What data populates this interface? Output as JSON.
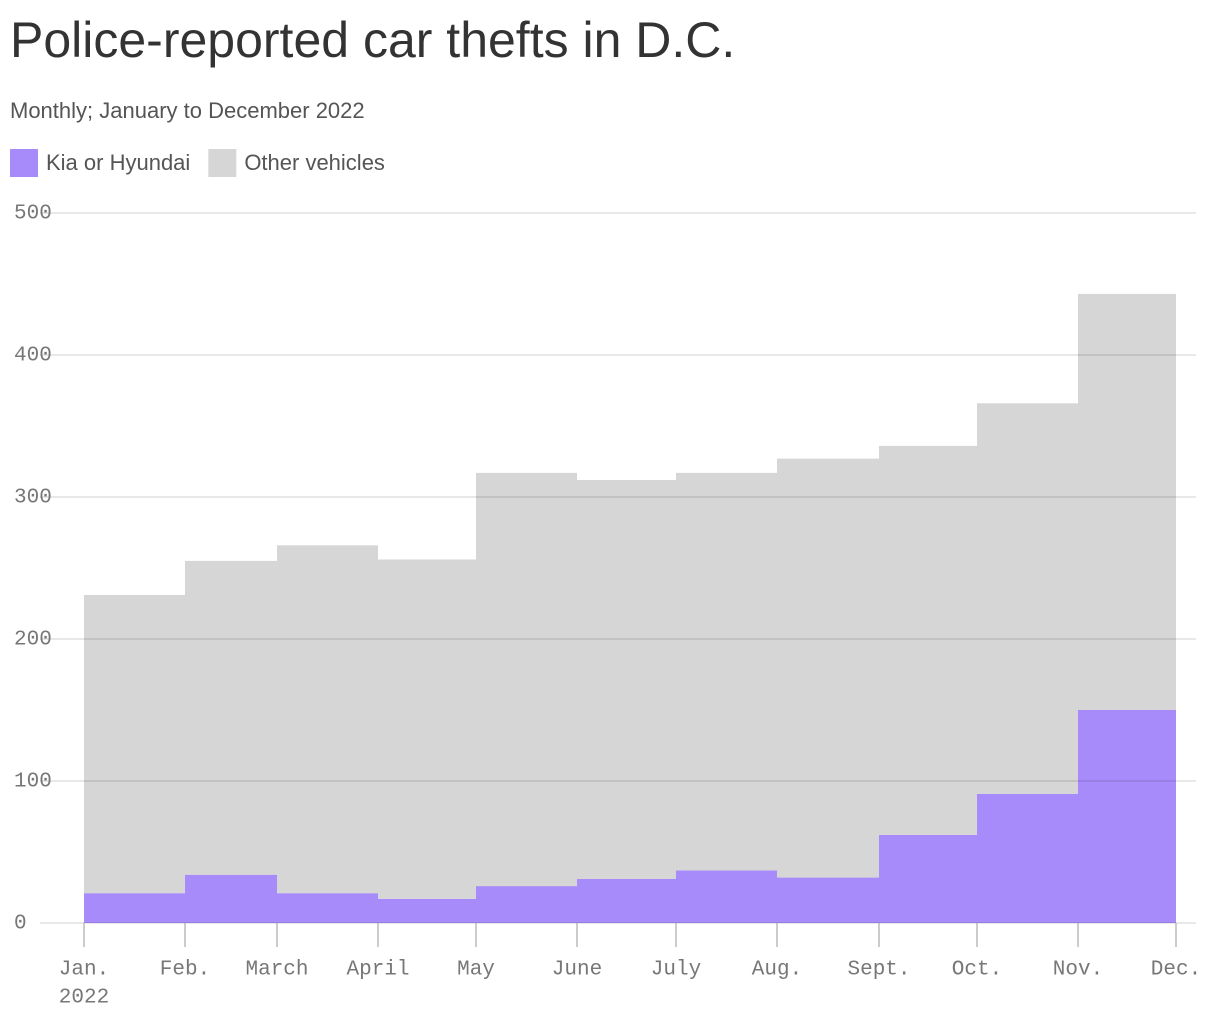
{
  "chart_data": {
    "type": "step-area-stacked",
    "title": "Police-reported car thefts in D.C.",
    "subtitle": "Monthly; January to December 2022",
    "categories": [
      "Jan.",
      "Feb.",
      "March",
      "April",
      "May",
      "June",
      "July",
      "Aug.",
      "Sept.",
      "Oct.",
      "Nov.",
      "Dec."
    ],
    "x_sublabel": "2022",
    "series": [
      {
        "name": "Kia or Hyundai",
        "color": "#a78bfa",
        "values": [
          21,
          34,
          21,
          17,
          26,
          31,
          37,
          32,
          62,
          91,
          150,
          null
        ]
      },
      {
        "name": "Other vehicles",
        "color": "#d6d6d6",
        "values": [
          210,
          221,
          245,
          239,
          291,
          281,
          280,
          295,
          274,
          275,
          293,
          null
        ]
      }
    ],
    "ylim": [
      0,
      500
    ],
    "yticks": [
      0,
      100,
      200,
      300,
      400,
      500
    ],
    "grid": true,
    "legend": "top-left"
  }
}
